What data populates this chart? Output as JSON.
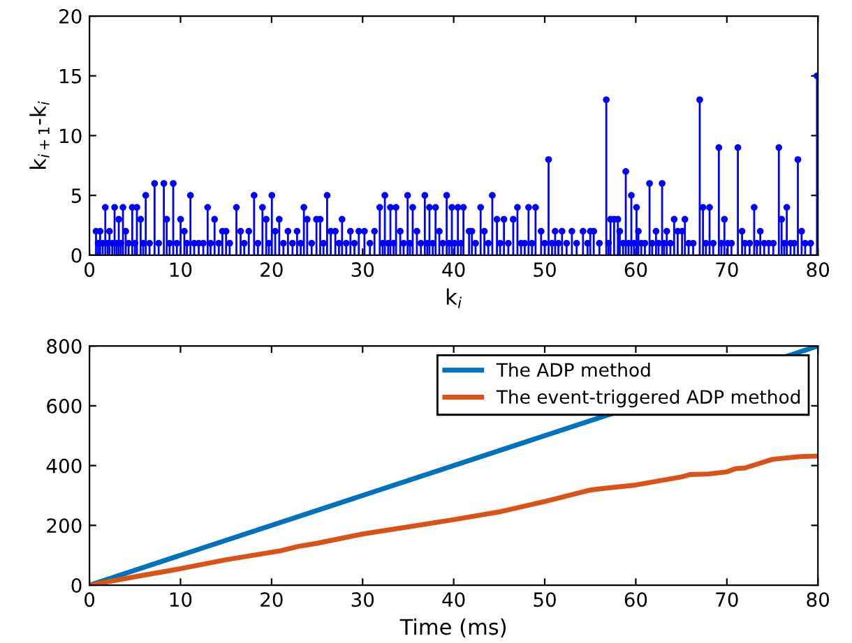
{
  "chart_data": [
    {
      "type": "lollipop",
      "xlabel": "k$_{i}$",
      "ylabel": "k$_{i+1}$-k$_{i}$",
      "xlim": [
        0,
        80
      ],
      "ylim": [
        0,
        20
      ],
      "xticks": [
        0,
        10,
        20,
        30,
        40,
        50,
        60,
        70,
        80
      ],
      "yticks": [
        0,
        5,
        10,
        15,
        20
      ],
      "marker": "circle",
      "grid": false,
      "legend": false,
      "series": [
        {
          "color": "#0000ff",
          "x": [
            0.72,
            0.95,
            1.17,
            1.45,
            1.74,
            2.0,
            2.2,
            2.5,
            2.76,
            3.0,
            3.22,
            3.45,
            3.68,
            3.98,
            4.3,
            4.7,
            5.0,
            5.21,
            5.62,
            5.9,
            6.18,
            6.6,
            7.15,
            7.6,
            8.17,
            8.48,
            8.8,
            9.2,
            9.6,
            10.01,
            10.42,
            10.7,
            11.09,
            11.5,
            12.0,
            12.5,
            12.98,
            13.3,
            13.74,
            14.2,
            14.6,
            15.0,
            15.4,
            16.14,
            16.6,
            17.0,
            17.5,
            18.08,
            18.5,
            19.0,
            19.41,
            19.7,
            20.03,
            20.4,
            20.84,
            21.3,
            21.8,
            22.3,
            22.8,
            23.2,
            23.55,
            23.91,
            24.4,
            24.93,
            25.34,
            25.7,
            26.1,
            26.5,
            27.0,
            27.4,
            27.74,
            28.2,
            28.66,
            29.1,
            29.58,
            30.2,
            30.8,
            31.3,
            31.88,
            32.2,
            32.44,
            32.8,
            33.05,
            33.4,
            33.67,
            34.13,
            34.5,
            34.94,
            35.2,
            35.5,
            35.96,
            36.4,
            36.83,
            37.1,
            37.34,
            37.7,
            38.01,
            38.42,
            38.8,
            39.23,
            39.5,
            39.8,
            40.1,
            40.46,
            40.8,
            41.07,
            41.69,
            42.0,
            42.4,
            42.96,
            43.37,
            43.8,
            44.24,
            44.75,
            45.1,
            45.52,
            46.0,
            46.54,
            47.0,
            47.4,
            47.8,
            48.22,
            48.6,
            48.99,
            49.6,
            50.0,
            50.42,
            50.8,
            51.14,
            51.5,
            51.9,
            52.4,
            52.98,
            53.5,
            54.2,
            54.7,
            55.0,
            55.38,
            56.0,
            56.76,
            57.0,
            57.22,
            57.62,
            58.03,
            58.24,
            58.6,
            58.9,
            59.2,
            59.51,
            59.8,
            60.08,
            60.28,
            60.6,
            61.0,
            61.51,
            61.8,
            62.22,
            62.5,
            62.89,
            63.1,
            63.4,
            63.8,
            64.21,
            64.6,
            65.08,
            65.39,
            65.8,
            66.3,
            67.02,
            67.38,
            67.7,
            68.1,
            68.5,
            69.12,
            69.4,
            69.73,
            70.1,
            70.5,
            71.21,
            71.67,
            72.0,
            72.5,
            73.0,
            73.3,
            73.67,
            74.1,
            74.6,
            75.1,
            75.71,
            76.01,
            76.3,
            76.58,
            77.0,
            77.4,
            77.8,
            78.21,
            78.6,
            79.2,
            79.9
          ],
          "values": [
            2,
            1,
            2,
            1,
            4,
            1,
            2,
            1,
            4,
            1,
            3,
            1,
            4,
            2,
            1,
            4,
            1,
            4,
            3,
            1,
            5,
            1,
            6,
            1,
            6,
            3,
            1,
            6,
            1,
            3,
            2,
            1,
            5,
            1,
            1,
            1,
            4,
            1,
            3,
            1,
            2,
            2,
            1,
            4,
            2,
            1,
            2,
            5,
            1,
            4,
            3,
            1,
            5,
            2,
            3,
            1,
            2,
            1,
            2,
            1,
            4,
            3,
            1,
            3,
            3,
            1,
            5,
            2,
            2,
            1,
            3,
            1,
            2,
            1,
            2,
            2,
            1,
            2,
            4,
            1,
            5,
            1,
            4,
            1,
            4,
            2,
            1,
            5,
            1,
            4,
            2,
            1,
            5,
            1,
            4,
            1,
            4,
            2,
            1,
            5,
            1,
            4,
            1,
            4,
            1,
            4,
            2,
            2,
            1,
            4,
            2,
            1,
            5,
            3,
            1,
            3,
            1,
            3,
            4,
            1,
            1,
            4,
            1,
            4,
            2,
            1,
            8,
            1,
            2,
            1,
            2,
            1,
            2,
            1,
            2,
            1,
            2,
            2,
            1,
            13,
            1,
            3,
            3,
            3,
            2,
            1,
            7,
            1,
            5,
            1,
            4,
            2,
            1,
            1,
            6,
            1,
            2,
            1,
            6,
            1,
            2,
            1,
            3,
            2,
            2,
            3,
            1,
            1,
            13,
            4,
            1,
            4,
            1,
            9,
            1,
            3,
            1,
            1,
            9,
            2,
            1,
            1,
            4,
            1,
            2,
            1,
            1,
            1,
            9,
            3,
            1,
            4,
            1,
            1,
            8,
            2,
            1,
            1,
            15
          ]
        }
      ]
    },
    {
      "type": "line",
      "xlabel": "Time (ms)",
      "xlim": [
        0,
        80
      ],
      "ylim": [
        0,
        800
      ],
      "xticks": [
        0,
        10,
        20,
        30,
        40,
        50,
        60,
        70,
        80
      ],
      "yticks": [
        0,
        200,
        400,
        600,
        800
      ],
      "grid": false,
      "legend": "top right",
      "line_style": "solid",
      "marker": "none",
      "series": [
        {
          "name": "The ADP method",
          "color": "#0072bd",
          "x": [
            0,
            80
          ],
          "values": [
            0,
            800
          ]
        },
        {
          "name": "The event-triggered ADP method",
          "color": "#d95319",
          "x": [
            0,
            5,
            10,
            15,
            20,
            21,
            23,
            25,
            30,
            35,
            40,
            45,
            50,
            55,
            56,
            60,
            65,
            66,
            68,
            70,
            71,
            72,
            75,
            78,
            80
          ],
          "values": [
            0,
            28,
            55,
            85,
            110,
            115,
            130,
            140,
            171,
            195,
            219,
            245,
            280,
            318,
            322,
            335,
            362,
            370,
            372,
            379,
            390,
            392,
            421,
            430,
            432
          ]
        }
      ]
    }
  ]
}
